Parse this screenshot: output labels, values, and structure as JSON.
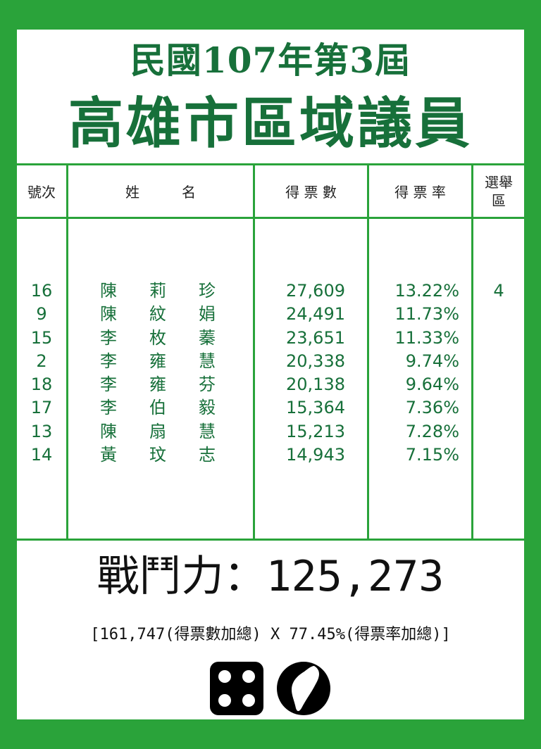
{
  "header": {
    "title_line1": "民國107年第3屆",
    "title_line2": "高雄市區域議員"
  },
  "table": {
    "columns": [
      "號次",
      "姓　　　名",
      "得 票 數",
      "得 票 率",
      "選舉\n區"
    ],
    "district": "4",
    "rows": [
      {
        "number": "16",
        "name": [
          "陳",
          "莉",
          "珍"
        ],
        "votes": "27,609",
        "rate": "13.22%"
      },
      {
        "number": "9",
        "name": [
          "陳",
          "紋",
          "娟"
        ],
        "votes": "24,491",
        "rate": "11.73%"
      },
      {
        "number": "15",
        "name": [
          "李",
          "枚",
          "蓁"
        ],
        "votes": "23,651",
        "rate": "11.33%"
      },
      {
        "number": "2",
        "name": [
          "李",
          "雍",
          "慧"
        ],
        "votes": "20,338",
        "rate": "9.74%"
      },
      {
        "number": "18",
        "name": [
          "李",
          "雍",
          "芬"
        ],
        "votes": "20,138",
        "rate": "9.64%"
      },
      {
        "number": "17",
        "name": [
          "李",
          "伯",
          "毅"
        ],
        "votes": "15,364",
        "rate": "7.36%"
      },
      {
        "number": "13",
        "name": [
          "陳",
          "扇",
          "慧"
        ],
        "votes": "15,213",
        "rate": "7.28%"
      },
      {
        "number": "14",
        "name": [
          "黃",
          "玟",
          "志"
        ],
        "votes": "14,943",
        "rate": "7.15%"
      }
    ]
  },
  "summary": {
    "power_label": "戰鬥力：",
    "power_value": "125,273",
    "formula": "[161,747(得票數加總) X 77.45%(得票率加總)]"
  },
  "icons": [
    "dice-icon",
    "taiwan-map-icon"
  ],
  "colors": {
    "background": "#2aa33a",
    "accent": "#17703a"
  }
}
